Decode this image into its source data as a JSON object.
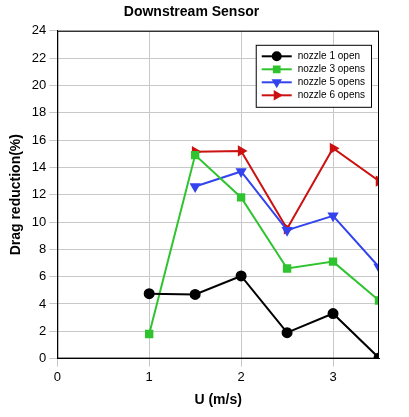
{
  "chart_data": {
    "type": "line",
    "title": "Downstream Sensor",
    "x_label": "U (m/s)",
    "y_label": "Drag reduction(%)",
    "x": [
      1,
      1.5,
      2,
      2.5,
      3,
      3.5
    ],
    "series": [
      {
        "name": "nozzle 1 open",
        "color": "#000000",
        "marker": "circle",
        "values": [
          4.75,
          4.7,
          6.05,
          1.9,
          3.3,
          0.05
        ]
      },
      {
        "name": "nozzle 3 opens",
        "color": "#2fc42f",
        "marker": "square",
        "values": [
          1.8,
          14.9,
          11.8,
          6.6,
          7.1,
          4.25
        ]
      },
      {
        "name": "nozzle 5 opens",
        "color": "#3344ee",
        "marker": "triangle-down",
        "values": [
          null,
          12.6,
          13.7,
          9.4,
          10.45,
          6.7
        ]
      },
      {
        "name": "nozzle 6 opens",
        "color": "#cc1111",
        "marker": "triangle-right",
        "values": [
          null,
          15.15,
          15.2,
          9.5,
          15.4,
          13.0
        ]
      }
    ],
    "xlim": [
      0,
      3.5
    ],
    "xticks": [
      0,
      1,
      2,
      3
    ],
    "ylim": [
      0,
      24
    ],
    "yticks": [
      0,
      2,
      4,
      6,
      8,
      10,
      12,
      14,
      16,
      18,
      20,
      22,
      24
    ],
    "grid": true,
    "legend": "upper right"
  }
}
